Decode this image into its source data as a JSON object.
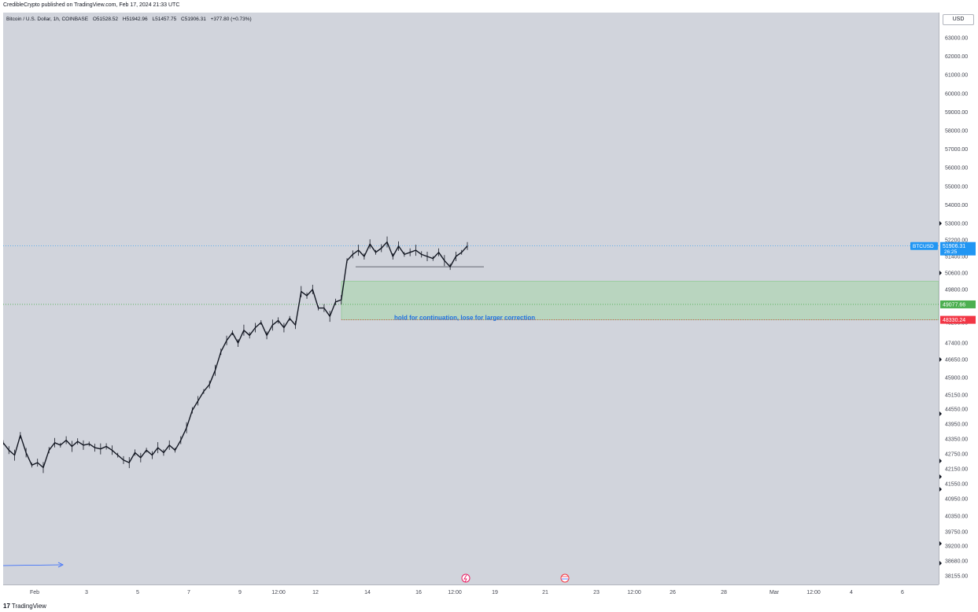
{
  "header": {
    "published_by": "CredibleCrypto published on TradingView.com, Feb 17, 2024 21:33 UTC"
  },
  "legend": {
    "symbol_description": "Bitcoin / U.S. Dollar, 1h, COINBASE",
    "open": "O51528.52",
    "high": "H51942.96",
    "low": "L51457.75",
    "close": "C51906.31",
    "change": "+377.80 (+0.73%)"
  },
  "price_scale": {
    "currency_button": "USD",
    "ticks": [
      "63000.00",
      "62000.00",
      "61000.00",
      "60000.00",
      "59000.00",
      "58000.00",
      "57000.00",
      "56000.00",
      "55000.00",
      "54000.00",
      "53000.00",
      "52200.00",
      "51400.00",
      "50600.00",
      "49800.00",
      "49000.00",
      "48200.00",
      "47400.00",
      "46650.00",
      "45900.00",
      "45150.00",
      "44550.00",
      "43950.00",
      "43350.00",
      "42750.00",
      "42150.00",
      "41550.00",
      "40950.00",
      "40350.00",
      "39750.00",
      "39200.00",
      "38680.00",
      "38155.00"
    ],
    "current_price_label": {
      "symbol": "BTCUSD",
      "price": "51906.31",
      "countdown": "26:25",
      "color": "#2196f3"
    },
    "support_label": {
      "price": "49077.66",
      "color": "#4caf50"
    },
    "stop_label": {
      "price": "48330.24",
      "color": "#f23645"
    }
  },
  "time_axis": {
    "labels": [
      "Feb",
      "3",
      "5",
      "7",
      "9",
      "12:00",
      "12",
      "14",
      "16",
      "12:00",
      "19",
      "21",
      "23",
      "12:00",
      "26",
      "28",
      "Mar",
      "12:00",
      "4",
      "6"
    ]
  },
  "annotation": {
    "zone_text": "hold for continuation, lose for larger correction",
    "text_color": "#1f6fe0",
    "zone_fill": "#a5d6a7"
  },
  "chart_data": {
    "type": "line",
    "series": [
      {
        "values": [
          43200,
          42900,
          42700,
          43500,
          42800,
          42300,
          42400,
          42200,
          42900,
          43200,
          43100,
          43300,
          43050,
          43250,
          43100,
          43150,
          43000,
          42950,
          43050,
          42900,
          42700,
          42500,
          42400,
          42800,
          42600,
          42900,
          42700,
          43000,
          42800,
          43100,
          42900,
          43300,
          43800,
          44500,
          44900,
          45300,
          45600,
          46200,
          47000,
          47500,
          47800,
          47400,
          47900,
          47700,
          48000,
          48200,
          47700,
          48100,
          48300,
          48000,
          48400,
          48100,
          49700,
          49500,
          49800,
          48900,
          48900,
          48500,
          49200,
          49300,
          51200,
          51500,
          51700,
          51400,
          52000,
          51600,
          51800,
          52100,
          51400,
          51900,
          51500,
          51600,
          51700,
          51500,
          51400,
          51300,
          51600,
          51200,
          50900,
          51400,
          51600,
          51906
        ]
      }
    ],
    "levels": {
      "current": 51906.31,
      "reference_line": 50900,
      "zone_top": 50200,
      "support": 49077.66,
      "zone_bottom": 48330.24
    }
  },
  "footer": {
    "logo_mark": "17",
    "logo_text": "TradingView"
  }
}
